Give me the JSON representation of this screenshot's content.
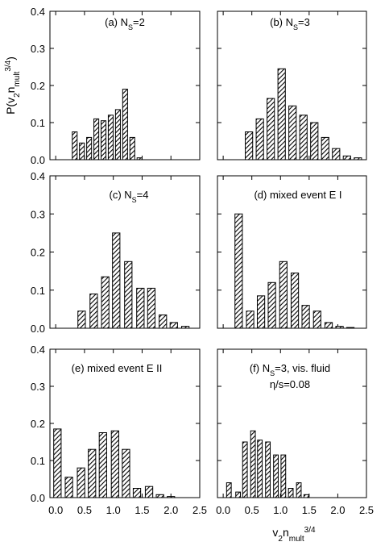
{
  "figure": {
    "ylabel": [
      {
        "text": "P(v"
      },
      {
        "text": "2",
        "shift": "sub"
      },
      {
        "text": "n"
      },
      {
        "text": "mult",
        "shift": "sub"
      },
      {
        "text": "3/4",
        "shift": "super"
      },
      {
        "text": ")"
      }
    ],
    "xlabel": [
      {
        "text": "v"
      },
      {
        "text": "2",
        "shift": "sub"
      },
      {
        "text": "n"
      },
      {
        "text": "mult",
        "shift": "sub"
      },
      {
        "text": "3/4",
        "shift": "super"
      }
    ]
  },
  "chart_data": [
    {
      "type": "bar",
      "title": [
        {
          "text": "(a) N"
        },
        {
          "text": "S",
          "shift": "sub"
        },
        {
          "text": "=2"
        }
      ],
      "x": [
        0.33,
        0.455,
        0.58,
        0.705,
        0.83,
        0.955,
        1.08,
        1.205,
        1.33,
        1.455
      ],
      "values": [
        0.075,
        0.045,
        0.06,
        0.11,
        0.105,
        0.12,
        0.135,
        0.19,
        0.06,
        0.005
      ],
      "xlim": [
        -0.1,
        2.5
      ],
      "ylim": [
        0,
        0.4
      ],
      "xticks": [
        {
          "value": 0,
          "label": "0.0"
        },
        0.5,
        {
          "value": 1,
          "label": "1.0"
        },
        1.5,
        {
          "value": 2,
          "label": "2.0"
        },
        2.5
      ],
      "yticks": [
        {
          "value": 0,
          "label": "0.0"
        },
        0.1,
        0.2,
        0.3,
        0.4
      ],
      "xtick_labels": false,
      "ytick_labels": true,
      "color": "#000000"
    },
    {
      "type": "bar",
      "title": [
        {
          "text": "(b) N"
        },
        {
          "text": "S",
          "shift": "sub"
        },
        {
          "text": "=3"
        }
      ],
      "x": [
        0.45,
        0.64,
        0.83,
        1.02,
        1.21,
        1.4,
        1.59,
        1.78,
        1.97,
        2.16,
        2.35
      ],
      "values": [
        0.075,
        0.11,
        0.165,
        0.245,
        0.145,
        0.12,
        0.1,
        0.06,
        0.03,
        0.01,
        0.005
      ],
      "xlim": [
        -0.1,
        2.5
      ],
      "ylim": [
        0,
        0.4
      ],
      "xticks": [
        {
          "value": 0,
          "label": "0.0"
        },
        0.5,
        {
          "value": 1,
          "label": "1.0"
        },
        1.5,
        {
          "value": 2,
          "label": "2.0"
        },
        2.5
      ],
      "yticks": [
        {
          "value": 0,
          "label": "0.0"
        },
        0.1,
        0.2,
        0.3,
        0.4
      ],
      "xtick_labels": false,
      "ytick_labels": false,
      "color": "#000000"
    },
    {
      "type": "bar",
      "title": [
        {
          "text": "(c) N"
        },
        {
          "text": "S",
          "shift": "sub"
        },
        {
          "text": "=4"
        }
      ],
      "x": [
        0.45,
        0.66,
        0.86,
        1.05,
        1.26,
        1.47,
        1.66,
        1.86,
        2.05,
        2.25
      ],
      "values": [
        0.045,
        0.09,
        0.135,
        0.25,
        0.175,
        0.105,
        0.105,
        0.035,
        0.015,
        0.005
      ],
      "xlim": [
        -0.1,
        2.5
      ],
      "ylim": [
        0,
        0.4
      ],
      "xticks": [
        {
          "value": 0,
          "label": "0.0"
        },
        0.5,
        {
          "value": 1,
          "label": "1.0"
        },
        1.5,
        {
          "value": 2,
          "label": "2.0"
        },
        2.5
      ],
      "yticks": [
        {
          "value": 0,
          "label": "0.0"
        },
        0.1,
        0.2,
        0.3,
        0.4
      ],
      "xtick_labels": false,
      "ytick_labels": true,
      "color": "#000000"
    },
    {
      "type": "bar",
      "title": [
        {
          "text": "(d) mixed event E I"
        }
      ],
      "x": [
        0.27,
        0.47,
        0.66,
        0.85,
        1.05,
        1.25,
        1.44,
        1.64,
        1.84,
        2.03,
        2.22
      ],
      "values": [
        0.3,
        0.045,
        0.085,
        0.12,
        0.175,
        0.145,
        0.06,
        0.045,
        0.015,
        0.005,
        0.002
      ],
      "xlim": [
        -0.1,
        2.5
      ],
      "ylim": [
        0,
        0.4
      ],
      "xticks": [
        {
          "value": 0,
          "label": "0.0"
        },
        0.5,
        {
          "value": 1,
          "label": "1.0"
        },
        1.5,
        {
          "value": 2,
          "label": "2.0"
        },
        2.5
      ],
      "yticks": [
        {
          "value": 0,
          "label": "0.0"
        },
        0.1,
        0.2,
        0.3,
        0.4
      ],
      "xtick_labels": false,
      "ytick_labels": false,
      "color": "#000000"
    },
    {
      "type": "bar",
      "title": [
        {
          "text": "(e) mixed event E II"
        }
      ],
      "x": [
        0.03,
        0.23,
        0.44,
        0.63,
        0.82,
        1.03,
        1.22,
        1.41,
        1.62,
        1.81,
        2.0
      ],
      "values": [
        0.185,
        0.055,
        0.08,
        0.13,
        0.175,
        0.18,
        0.13,
        0.025,
        0.03,
        0.008,
        0.003
      ],
      "xlim": [
        -0.1,
        2.5
      ],
      "ylim": [
        0,
        0.4
      ],
      "xticks": [
        {
          "value": 0,
          "label": "0.0"
        },
        0.5,
        {
          "value": 1,
          "label": "1.0"
        },
        1.5,
        {
          "value": 2,
          "label": "2.0"
        },
        2.5
      ],
      "yticks": [
        {
          "value": 0,
          "label": "0.0"
        },
        0.1,
        0.2,
        0.3,
        0.4
      ],
      "xtick_labels": true,
      "ytick_labels": true,
      "color": "#000000"
    },
    {
      "type": "bar",
      "title": [
        {
          "text": "(f) N"
        },
        {
          "text": "S",
          "shift": "sub"
        },
        {
          "text": "=3, vis. fluid"
        }
      ],
      "annotation": "η/s=0.08",
      "x": [
        0.1,
        0.26,
        0.38,
        0.52,
        0.64,
        0.78,
        0.92,
        1.05,
        1.18,
        1.32,
        1.45
      ],
      "values": [
        0.04,
        0.015,
        0.15,
        0.18,
        0.155,
        0.15,
        0.115,
        0.115,
        0.025,
        0.04,
        0.008
      ],
      "xlim": [
        -0.1,
        2.5
      ],
      "ylim": [
        0,
        0.4
      ],
      "xticks": [
        {
          "value": 0,
          "label": "0.0"
        },
        0.5,
        {
          "value": 1,
          "label": "1.0"
        },
        1.5,
        {
          "value": 2,
          "label": "2.0"
        },
        2.5
      ],
      "yticks": [
        {
          "value": 0,
          "label": "0.0"
        },
        0.1,
        0.2,
        0.3,
        0.4
      ],
      "xtick_labels": true,
      "ytick_labels": false,
      "color": "#000000"
    }
  ]
}
